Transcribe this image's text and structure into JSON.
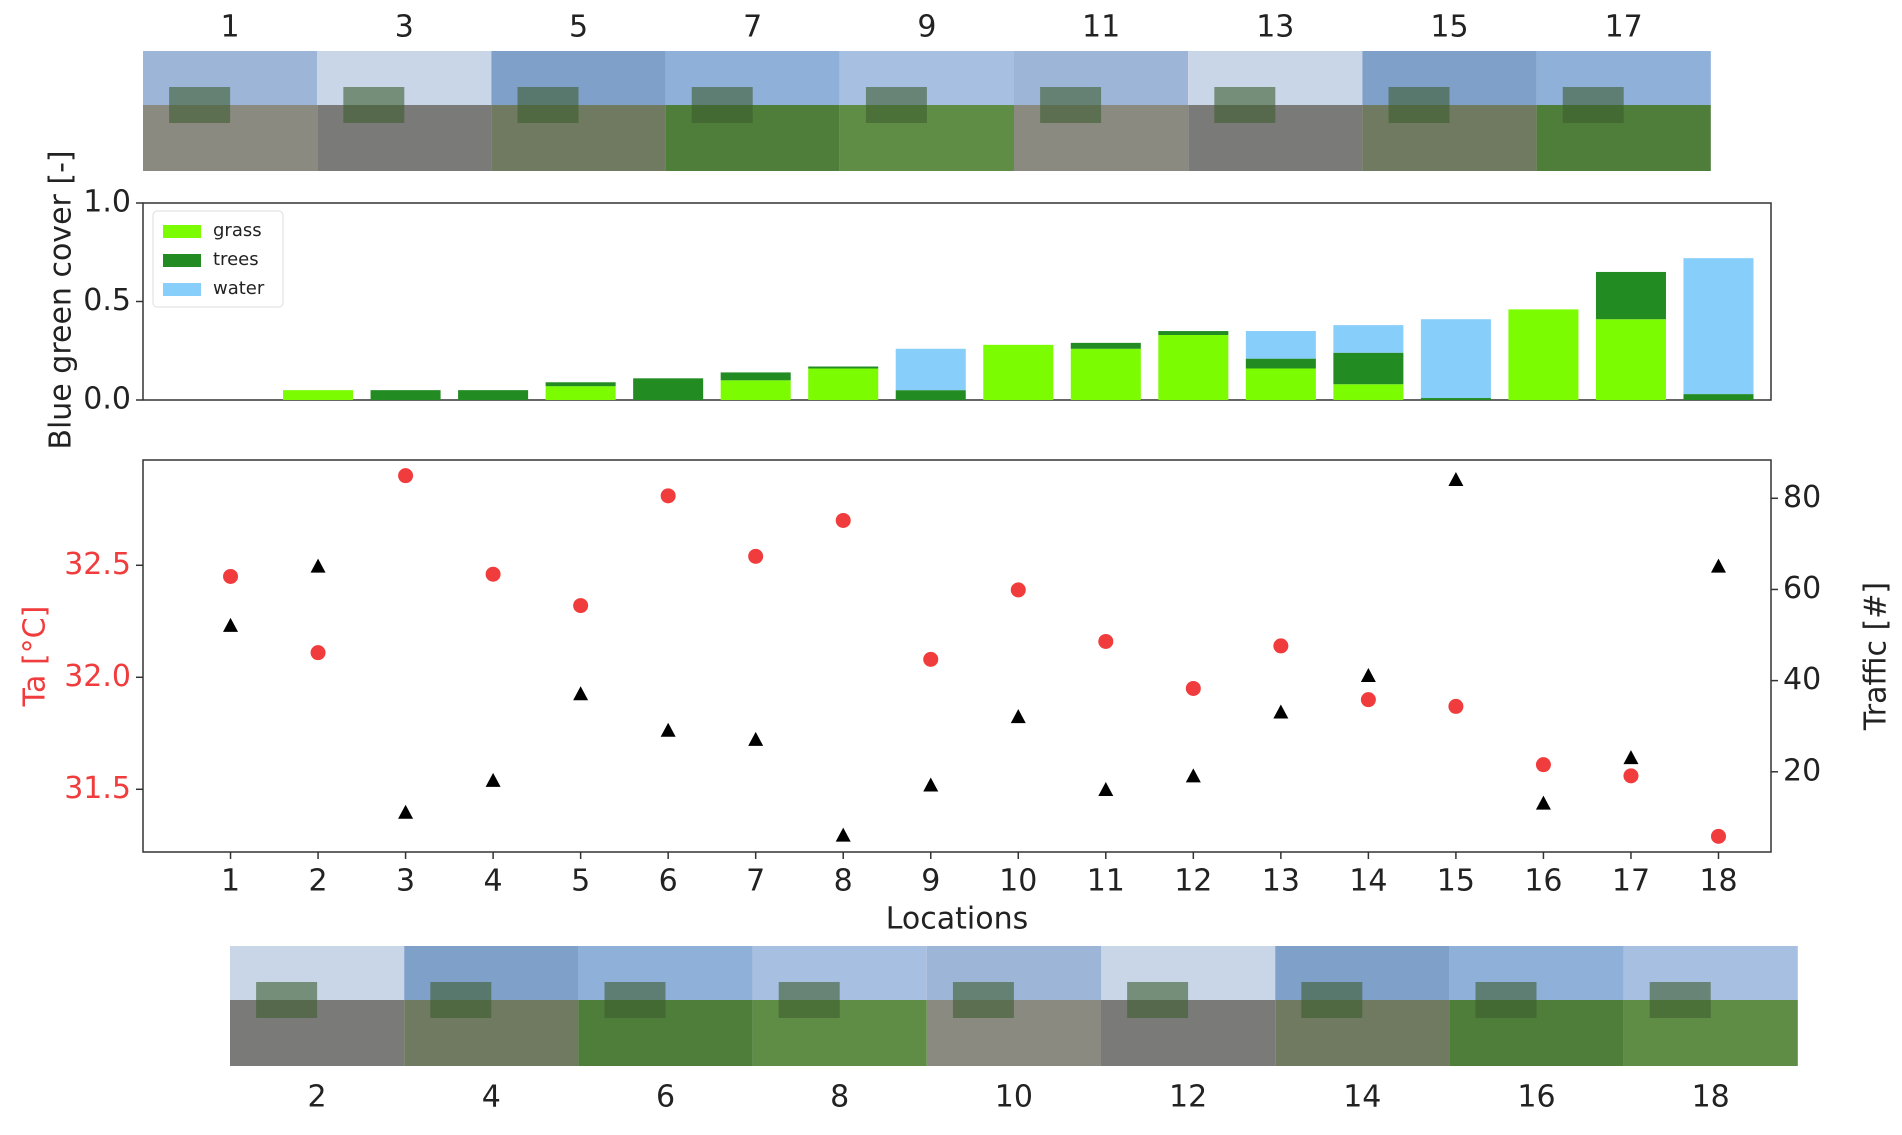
{
  "photos": {
    "top_labels": [
      1,
      3,
      5,
      7,
      9,
      11,
      13,
      15,
      17
    ],
    "bottom_labels": [
      2,
      4,
      6,
      8,
      10,
      12,
      14,
      16,
      18
    ]
  },
  "chart_data": [
    {
      "type": "bar",
      "stacked": true,
      "ylabel": "Blue green cover [-]",
      "ylim": [
        0,
        1
      ],
      "yticks": [
        {
          "value": 0,
          "label": "0.0"
        },
        {
          "value": 0.5,
          "label": "0.5"
        },
        {
          "value": 1,
          "label": "1.0"
        }
      ],
      "legend": "upper left",
      "grid": false,
      "series": [
        {
          "name": "grass",
          "color": "#7cfc00",
          "values": [
            0,
            0.05,
            0,
            0,
            0.07,
            0,
            0.1,
            0.16,
            0,
            0.28,
            0.26,
            0.33,
            0.16,
            0.08,
            0,
            0.46,
            0.41,
            0
          ]
        },
        {
          "name": "trees",
          "color": "#228b22",
          "values": [
            0,
            0,
            0.05,
            0.05,
            0.02,
            0.11,
            0.04,
            0.01,
            0.05,
            0,
            0.03,
            0.02,
            0.05,
            0.16,
            0.01,
            0,
            0.24,
            0.03
          ]
        },
        {
          "name": "water",
          "color": "#87cefa",
          "values": [
            0,
            0,
            0,
            0,
            0,
            0,
            0,
            0,
            0.21,
            0,
            0,
            0,
            0.14,
            0.14,
            0.4,
            0,
            0,
            0.69
          ]
        }
      ]
    },
    {
      "type": "scatter",
      "xlabel": "Locations",
      "ylabel": "Ta [°C]",
      "y2label": "Traffic [#]",
      "grid": false,
      "x": [
        1,
        2,
        3,
        4,
        5,
        6,
        7,
        8,
        9,
        10,
        11,
        12,
        13,
        14,
        15,
        16,
        17,
        18
      ],
      "xlim": [
        0,
        18.6
      ],
      "xticks": [
        1,
        2,
        3,
        4,
        5,
        6,
        7,
        8,
        9,
        10,
        11,
        12,
        13,
        14,
        15,
        16,
        17,
        18
      ],
      "ylim": [
        31.22,
        32.97
      ],
      "yticks": [
        31.5,
        {
          "value": 32,
          "label": "32.0"
        },
        32.5
      ],
      "y2lim": [
        2.4,
        88.4
      ],
      "y2ticks": [
        20,
        40,
        60,
        80
      ],
      "series": [
        {
          "color": "#f03c3c",
          "marker": "circle",
          "values": [
            32.45,
            32.11,
            32.9,
            32.46,
            32.32,
            32.81,
            32.54,
            32.7,
            32.08,
            32.39,
            32.16,
            31.95,
            32.14,
            31.9,
            31.87,
            31.61,
            31.56,
            31.29
          ]
        },
        {
          "color": "#000000",
          "marker": "triangle",
          "axis": "y2",
          "values": [
            52,
            65,
            11,
            18,
            37,
            29,
            27,
            6,
            17,
            32,
            16,
            19,
            33,
            41,
            84,
            13,
            23,
            65
          ]
        }
      ]
    }
  ]
}
